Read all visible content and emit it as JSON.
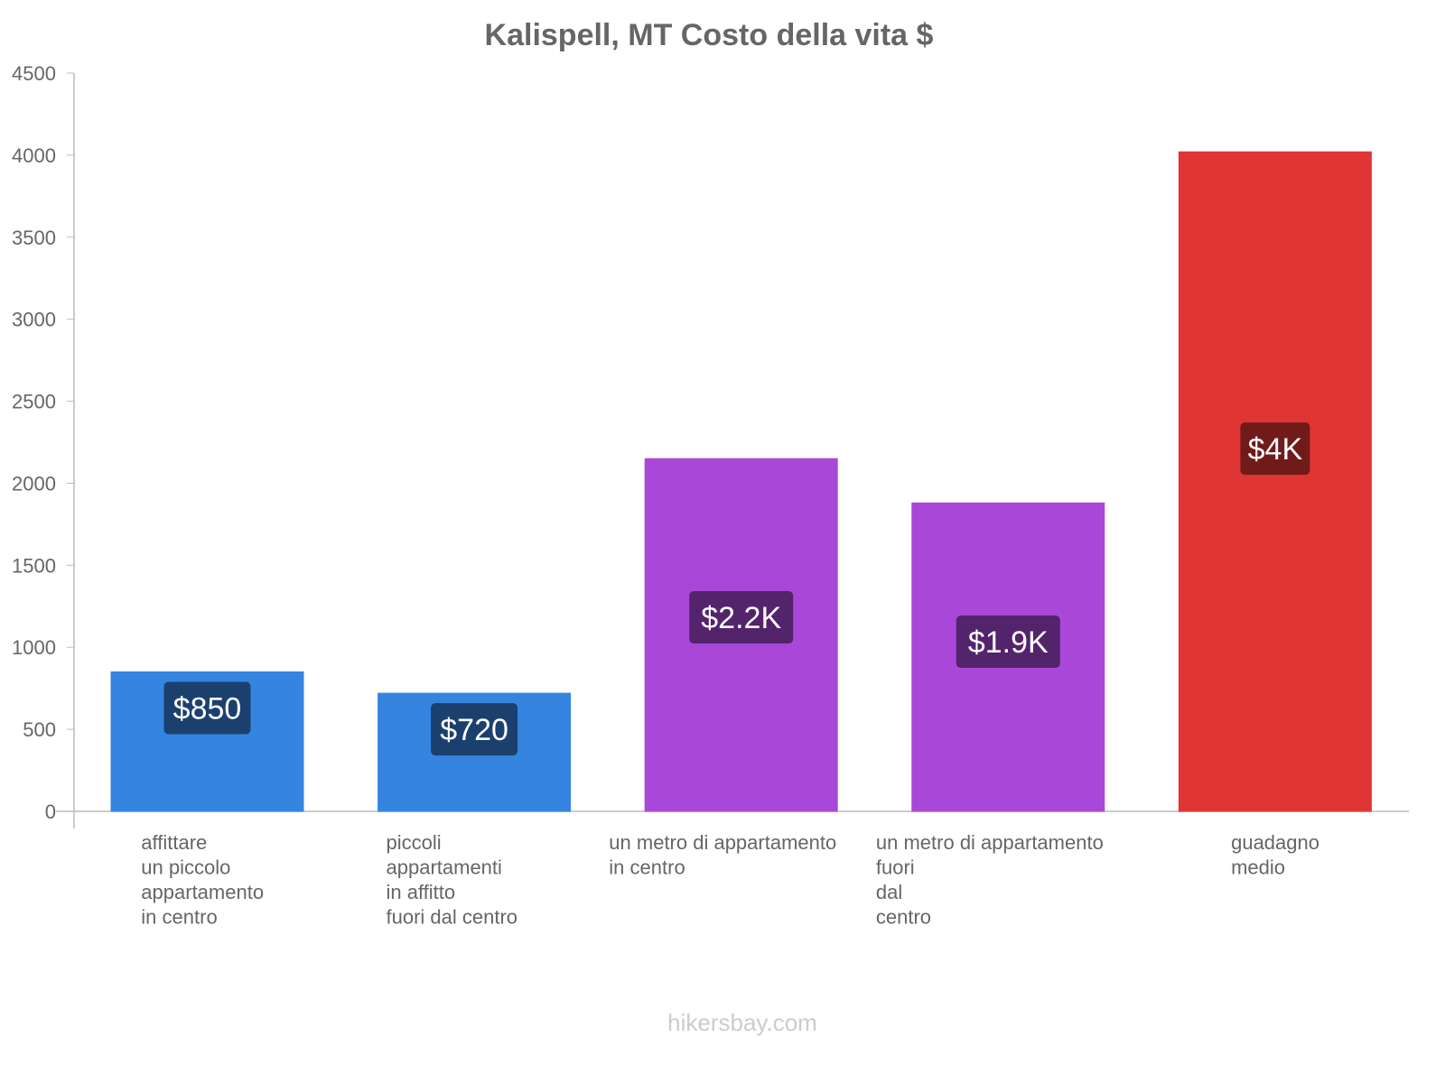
{
  "chart_data": {
    "type": "bar",
    "title": "Kalispell, MT Costo della vita $",
    "xlabel": "",
    "ylabel": "",
    "ylim": [
      0,
      4500
    ],
    "yticks": [
      0,
      500,
      1000,
      1500,
      2000,
      2500,
      3000,
      3500,
      4000,
      4500
    ],
    "grid": false,
    "categories": [
      [
        "affittare",
        "un piccolo",
        "appartamento",
        "in centro"
      ],
      [
        "piccoli",
        "appartamenti",
        "in affitto",
        "fuori dal centro"
      ],
      [
        "un metro di appartamento",
        "in centro"
      ],
      [
        "un metro di appartamento",
        "fuori",
        "dal",
        "centro"
      ],
      [
        "guadagno",
        "medio"
      ]
    ],
    "values": [
      850,
      720,
      2150,
      1880,
      4020
    ],
    "data_labels": [
      "$850",
      "$720",
      "$2.2K",
      "$1.9K",
      "$4K"
    ],
    "colors": [
      "#3584e0",
      "#3584e0",
      "#a948d8",
      "#a948d8",
      "#e03535"
    ],
    "label_colors": [
      "#1c406e",
      "#1c406e",
      "#53236c",
      "#53236c",
      "#701a1a"
    ]
  },
  "watermark": "hikersbay.com"
}
